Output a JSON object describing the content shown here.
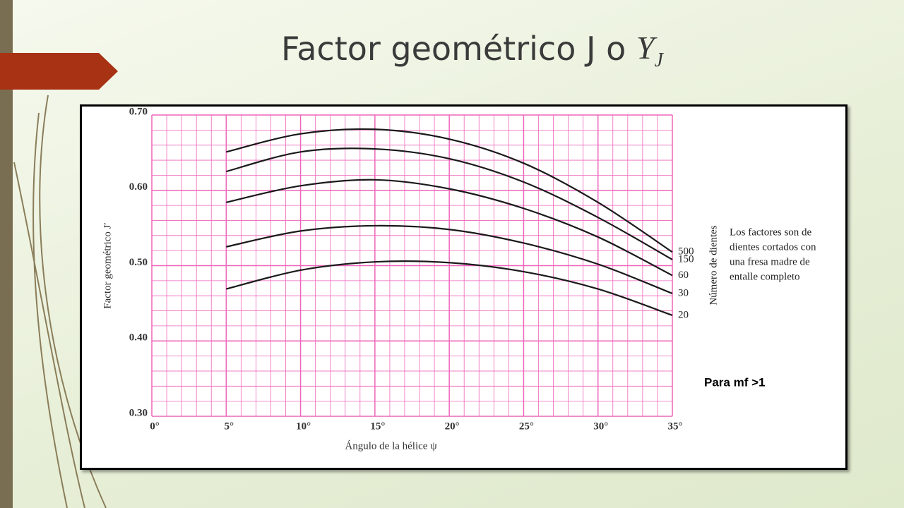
{
  "slide": {
    "title": "Factor geométrico J o ",
    "title_symbol": "Y",
    "title_subscript": "J"
  },
  "chart_data": {
    "type": "line",
    "x": [
      5,
      10,
      15,
      20,
      25,
      30,
      35
    ],
    "series": [
      {
        "name": "500",
        "color": "#1a1a1a",
        "values": [
          0.651,
          0.675,
          0.681,
          0.668,
          0.636,
          0.584,
          0.518
        ]
      },
      {
        "name": "150",
        "color": "#1a1a1a",
        "values": [
          0.625,
          0.651,
          0.655,
          0.642,
          0.611,
          0.564,
          0.508
        ]
      },
      {
        "name": "60",
        "color": "#1a1a1a",
        "values": [
          0.584,
          0.606,
          0.614,
          0.602,
          0.576,
          0.538,
          0.487
        ]
      },
      {
        "name": "30",
        "color": "#1a1a1a",
        "values": [
          0.525,
          0.546,
          0.553,
          0.548,
          0.53,
          0.502,
          0.463
        ]
      },
      {
        "name": "20",
        "color": "#1a1a1a",
        "values": [
          0.469,
          0.494,
          0.505,
          0.504,
          0.492,
          0.469,
          0.434
        ]
      }
    ],
    "xlim": [
      0,
      35
    ],
    "xticks": [
      {
        "value": 0,
        "label": "0°"
      },
      {
        "value": 5,
        "label": "5°"
      },
      {
        "value": 10,
        "label": "10°"
      },
      {
        "value": 15,
        "label": "15°"
      },
      {
        "value": 20,
        "label": "20°"
      },
      {
        "value": 25,
        "label": "25°"
      },
      {
        "value": 30,
        "label": "30°"
      },
      {
        "value": 35,
        "label": "35°"
      }
    ],
    "ylim": [
      0.3,
      0.7
    ],
    "yticks": [
      {
        "value": 0.3,
        "label": "0.30"
      },
      {
        "value": 0.4,
        "label": "0.40"
      },
      {
        "value": 0.5,
        "label": "0.50"
      },
      {
        "value": 0.6,
        "label": "0.60"
      },
      {
        "value": 0.7,
        "label": "0.70"
      }
    ],
    "xlabel": "Ángulo de la hélice ψ",
    "ylabel": "Factor geométrico J′",
    "legend_title": "Número de dientes",
    "note": [
      "Los factores son de",
      "dientes cortados con",
      "una fresa madre de",
      "entalle completo"
    ],
    "annotation": "Para mf >1",
    "grid": true,
    "grid_color": "#ee66bb"
  }
}
